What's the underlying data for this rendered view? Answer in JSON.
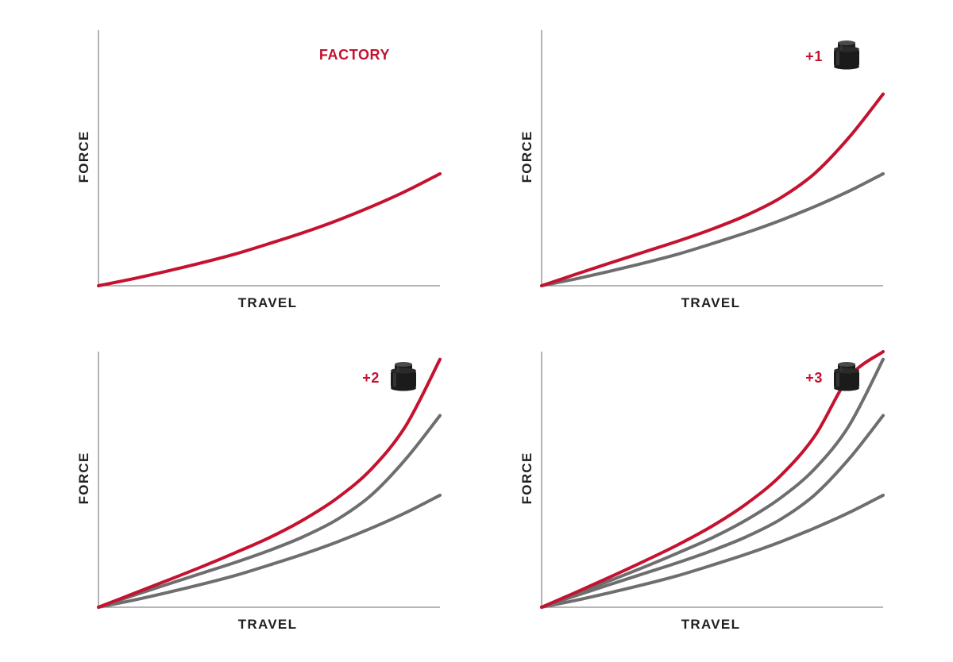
{
  "colors": {
    "highlight": "#c4122f",
    "baseline": "#6e6e6e",
    "axis": "#8a8a8a",
    "label": "#1f1f1f",
    "token_dark": "#1b1b1b",
    "token_light": "#4a4a4a"
  },
  "chart_data": [
    {
      "type": "line",
      "panel_label": "FACTORY",
      "token_icon": "",
      "xlabel": "TRAVEL",
      "ylabel": "FORCE",
      "xlim": [
        0,
        1
      ],
      "ylim": [
        0,
        1
      ],
      "ticks": false,
      "grid": false,
      "series": [
        {
          "role": "highlight",
          "x": [
            0,
            0.1,
            0.2,
            0.3,
            0.4,
            0.5,
            0.6,
            0.7,
            0.8,
            0.9,
            1.0
          ],
          "y": [
            0,
            0.027,
            0.057,
            0.089,
            0.124,
            0.165,
            0.208,
            0.256,
            0.31,
            0.37,
            0.438
          ]
        }
      ]
    },
    {
      "type": "line",
      "panel_label": "+1",
      "token_icon": "volume-spacer-token-icon",
      "xlabel": "TRAVEL",
      "ylabel": "FORCE",
      "xlim": [
        0,
        1
      ],
      "ylim": [
        0,
        1
      ],
      "ticks": false,
      "grid": false,
      "series": [
        {
          "role": "baseline",
          "x": [
            0,
            0.1,
            0.2,
            0.3,
            0.4,
            0.5,
            0.6,
            0.7,
            0.8,
            0.9,
            1.0
          ],
          "y": [
            0,
            0.027,
            0.057,
            0.089,
            0.124,
            0.165,
            0.208,
            0.256,
            0.31,
            0.37,
            0.438
          ]
        },
        {
          "role": "highlight",
          "x": [
            0,
            0.1,
            0.2,
            0.3,
            0.4,
            0.5,
            0.6,
            0.7,
            0.8,
            0.9,
            1.0
          ],
          "y": [
            0,
            0.045,
            0.089,
            0.132,
            0.175,
            0.222,
            0.276,
            0.344,
            0.44,
            0.58,
            0.75
          ]
        }
      ]
    },
    {
      "type": "line",
      "panel_label": "+2",
      "token_icon": "volume-spacer-token-icon",
      "xlabel": "TRAVEL",
      "ylabel": "FORCE",
      "xlim": [
        0,
        1
      ],
      "ylim": [
        0,
        1
      ],
      "ticks": false,
      "grid": false,
      "series": [
        {
          "role": "baseline",
          "x": [
            0,
            0.1,
            0.2,
            0.3,
            0.4,
            0.5,
            0.6,
            0.7,
            0.8,
            0.9,
            1.0
          ],
          "y": [
            0,
            0.027,
            0.057,
            0.089,
            0.124,
            0.165,
            0.208,
            0.256,
            0.31,
            0.37,
            0.438
          ]
        },
        {
          "role": "baseline",
          "x": [
            0,
            0.1,
            0.2,
            0.3,
            0.4,
            0.5,
            0.6,
            0.7,
            0.8,
            0.9,
            1.0
          ],
          "y": [
            0,
            0.045,
            0.089,
            0.132,
            0.175,
            0.222,
            0.276,
            0.344,
            0.44,
            0.58,
            0.75
          ]
        },
        {
          "role": "highlight",
          "x": [
            0,
            0.1,
            0.2,
            0.3,
            0.4,
            0.5,
            0.6,
            0.7,
            0.8,
            0.9,
            1.0
          ],
          "y": [
            0,
            0.052,
            0.104,
            0.157,
            0.213,
            0.272,
            0.342,
            0.428,
            0.542,
            0.71,
            0.97
          ]
        }
      ]
    },
    {
      "type": "line",
      "panel_label": "+3",
      "token_icon": "volume-spacer-token-icon",
      "xlabel": "TRAVEL",
      "ylabel": "FORCE",
      "xlim": [
        0,
        1
      ],
      "ylim": [
        0,
        1
      ],
      "ticks": false,
      "grid": false,
      "series": [
        {
          "role": "baseline",
          "x": [
            0,
            0.1,
            0.2,
            0.3,
            0.4,
            0.5,
            0.6,
            0.7,
            0.8,
            0.9,
            1.0
          ],
          "y": [
            0,
            0.027,
            0.057,
            0.089,
            0.124,
            0.165,
            0.208,
            0.256,
            0.31,
            0.37,
            0.438
          ]
        },
        {
          "role": "baseline",
          "x": [
            0,
            0.1,
            0.2,
            0.3,
            0.4,
            0.5,
            0.6,
            0.7,
            0.8,
            0.9,
            1.0
          ],
          "y": [
            0,
            0.045,
            0.089,
            0.132,
            0.175,
            0.222,
            0.276,
            0.344,
            0.44,
            0.58,
            0.75
          ]
        },
        {
          "role": "baseline",
          "x": [
            0,
            0.1,
            0.2,
            0.3,
            0.4,
            0.5,
            0.6,
            0.7,
            0.8,
            0.9,
            1.0
          ],
          "y": [
            0,
            0.052,
            0.104,
            0.157,
            0.213,
            0.272,
            0.342,
            0.428,
            0.542,
            0.71,
            0.97
          ]
        },
        {
          "role": "highlight",
          "x": [
            0,
            0.1,
            0.2,
            0.3,
            0.4,
            0.5,
            0.6,
            0.7,
            0.8,
            0.9,
            1.0
          ],
          "y": [
            0,
            0.058,
            0.118,
            0.18,
            0.245,
            0.318,
            0.405,
            0.515,
            0.67,
            0.9,
            1.0
          ]
        }
      ]
    }
  ]
}
